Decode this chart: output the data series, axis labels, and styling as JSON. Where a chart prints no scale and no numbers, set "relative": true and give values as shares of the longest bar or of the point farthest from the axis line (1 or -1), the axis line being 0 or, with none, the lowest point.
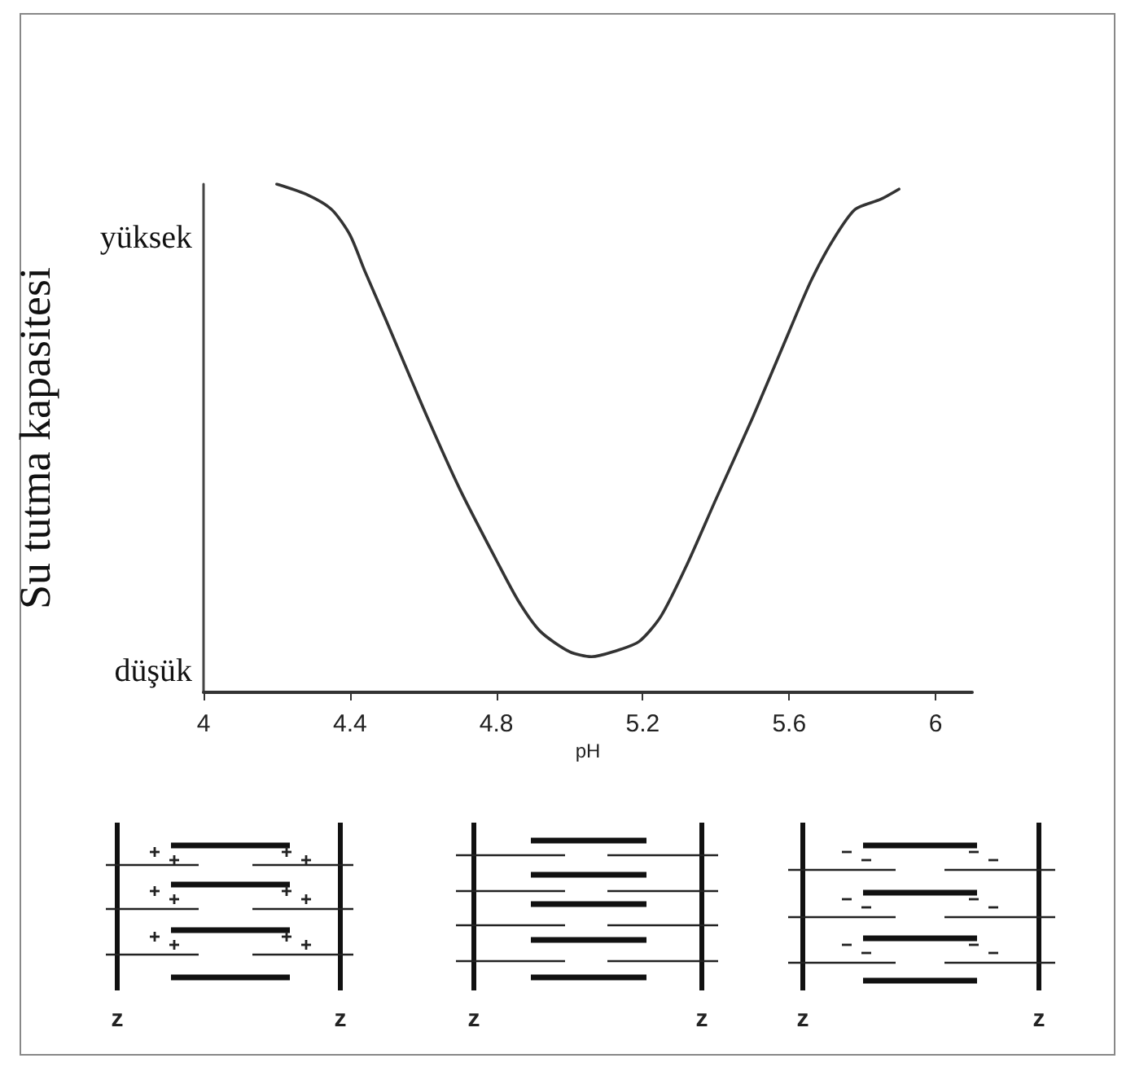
{
  "chart_data": {
    "type": "line",
    "xlabel": "pH",
    "ylabel": "Su tutma kapasitesi",
    "relative": true,
    "x": [
      4.2,
      4.28,
      4.35,
      4.4,
      4.44,
      4.5,
      4.6,
      4.7,
      4.8,
      4.86,
      4.92,
      5.0,
      5.06,
      5.12,
      5.19,
      5.25,
      5.32,
      5.4,
      5.5,
      5.6,
      5.66,
      5.72,
      5.78,
      5.85,
      5.9
    ],
    "values": [
      1,
      0.98,
      0.95,
      0.9,
      0.83,
      0.73,
      0.56,
      0.4,
      0.26,
      0.18,
      0.12,
      0.08,
      0.07,
      0.08,
      0.1,
      0.15,
      0.25,
      0.38,
      0.54,
      0.71,
      0.81,
      0.89,
      0.95,
      0.97,
      0.99
    ],
    "color": "#333333",
    "xlim": [
      4,
      6.1
    ],
    "xticks": [
      4,
      4.4,
      4.8,
      5.2,
      5.6,
      6
    ],
    "grid": false,
    "marker": "none",
    "line_style": "solid",
    "annotations": [
      "yüksek",
      "düşük",
      "z",
      "z",
      "z",
      "z",
      "z",
      "z"
    ]
  }
}
